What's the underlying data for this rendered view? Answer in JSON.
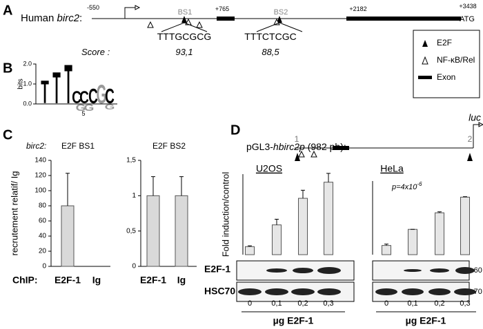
{
  "panels": {
    "a": "A",
    "b": "B",
    "c": "C",
    "d": "D"
  },
  "gene_map": {
    "label_prefix": "Human ",
    "gene": "birc2",
    "label_suffix": ":",
    "positions": [
      "-550",
      "+765",
      "+2182",
      "+3438"
    ],
    "atg": "ATG",
    "score_label": "Score :",
    "sites": [
      {
        "name": "BS1",
        "sequence": "TTTGCGCG",
        "score": "93,1"
      },
      {
        "name": "BS2",
        "sequence": "TTTCTCGC",
        "score": "88,5"
      }
    ]
  },
  "legend": {
    "items": [
      "E2F",
      "NF-κB/Rel",
      "Exon"
    ]
  },
  "logo": {
    "ylabel": "bits",
    "yticks": [
      "2.0",
      "1.0",
      "0.0"
    ],
    "xtick": "5",
    "letters": [
      "T",
      "T",
      "T",
      "C",
      "C",
      "C",
      "G",
      "C",
      "G",
      "G",
      "G"
    ]
  },
  "panel_c": {
    "gene": "birc2:",
    "row_label": "ChIP:"
  },
  "construct": {
    "prefix": "pGL3-",
    "gene": "hbirc2p",
    "suffix": " (982 pb):",
    "sites": [
      "1",
      "2"
    ],
    "reporter": "luc"
  },
  "blots": {
    "rows": [
      "E2F-1",
      "HSC70"
    ],
    "markers": [
      "-60",
      "-70"
    ],
    "xlabel": "µg E2F-1"
  },
  "chart_data": [
    {
      "type": "bar",
      "title": "E2F BS1",
      "ylabel": "recrutement relatif/ Ig",
      "categories": [
        "E2F-1",
        "Ig"
      ],
      "values": [
        80,
        0
      ],
      "errors": [
        43,
        0
      ],
      "color": "#d9d9d9",
      "ylim": [
        0,
        140
      ],
      "yticks": [
        0,
        20,
        40,
        60,
        80,
        100,
        120,
        140
      ]
    },
    {
      "type": "bar",
      "title": "E2F BS2",
      "categories": [
        "E2F-1",
        "Ig"
      ],
      "values": [
        1,
        1
      ],
      "errors": [
        0.27,
        0.27
      ],
      "color": "#d9d9d9",
      "ylim": [
        0,
        1.5
      ],
      "yticks": [
        0,
        {
          "value": 0.5,
          "label": "0,5"
        },
        1,
        {
          "value": 1.5,
          "label": "1,5"
        }
      ]
    },
    {
      "type": "bar",
      "title": "U2OS",
      "ylabel": "Fold induction/control",
      "categories": [
        "0",
        "0,1",
        "0,2",
        "0,3"
      ],
      "values": [
        1,
        3.7,
        7,
        9
      ],
      "errors": [
        0.1,
        0.7,
        1,
        1.1
      ],
      "color": "#e6e6e6",
      "ylim": [
        0,
        10
      ]
    },
    {
      "type": "bar",
      "title": "HeLa",
      "annotation": "p=4x10",
      "annotation_exponent": "-6",
      "categories": [
        "0",
        "0,1",
        "0,2",
        "0,3"
      ],
      "values": [
        1,
        2.75,
        4.55,
        6.25
      ],
      "errors": [
        0.15,
        0,
        0.1,
        0.05
      ],
      "color": "#e6e6e6",
      "ylim": [
        0,
        8
      ]
    }
  ]
}
